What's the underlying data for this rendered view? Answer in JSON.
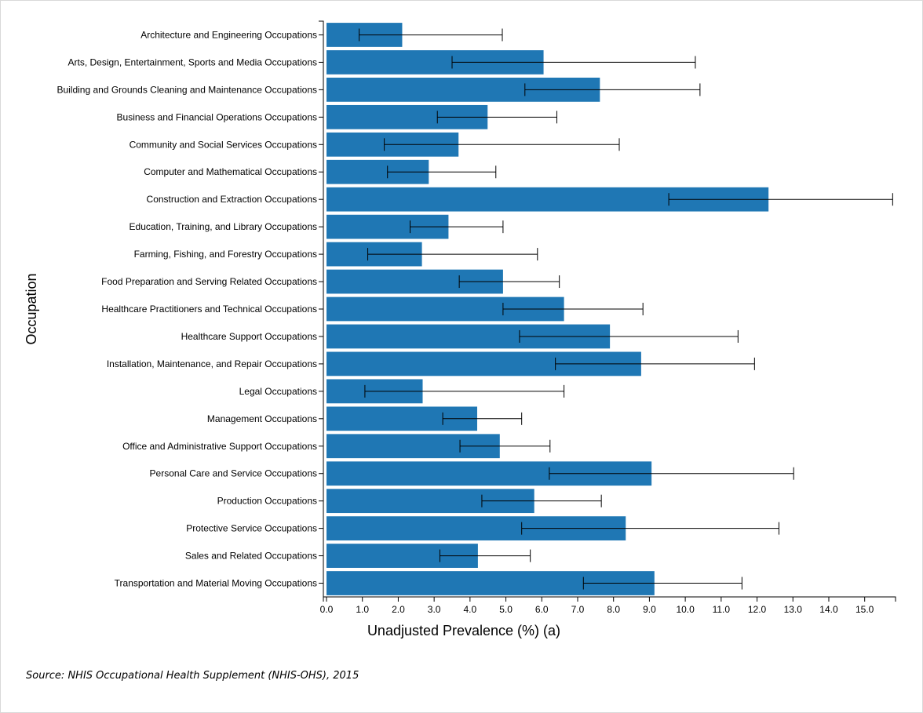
{
  "chart_data": {
    "type": "bar",
    "orientation": "horizontal",
    "xlabel": "Unadjusted Prevalence (%) (a)",
    "ylabel": "Occupation",
    "xlim": [
      0,
      15.86
    ],
    "xticks": [
      "0.0",
      "1.0",
      "2.0",
      "3.0",
      "4.0",
      "5.0",
      "6.0",
      "7.0",
      "8.0",
      "9.0",
      "10.0",
      "11.0",
      "12.0",
      "13.0",
      "14.0",
      "15.0"
    ],
    "grid": false,
    "bar_color": "#1f77b4",
    "error_bar_color": "#000000",
    "categories": [
      "Architecture and Engineering Occupations",
      "Arts, Design, Entertainment, Sports and Media Occupations",
      "Building and Grounds Cleaning and Maintenance Occupations",
      "Business and Financial Operations Occupations",
      "Community and Social Services Occupations",
      "Computer and Mathematical Occupations",
      "Construction and Extraction Occupations",
      "Education, Training, and Library Occupations",
      "Farming, Fishing, and Forestry Occupations",
      "Food Preparation and Serving Related Occupations",
      "Healthcare Practitioners and Technical Occupations",
      "Healthcare Support Occupations",
      "Installation, Maintenance, and Repair Occupations",
      "Legal Occupations",
      "Management Occupations",
      "Office and Administrative Support Occupations",
      "Personal Care and Service Occupations",
      "Production Occupations",
      "Protective Service Occupations",
      "Sales and Related Occupations",
      "Transportation and Material Moving Occupations"
    ],
    "values": [
      2.11,
      6.05,
      7.62,
      4.49,
      3.68,
      2.85,
      12.32,
      3.4,
      2.66,
      4.92,
      6.62,
      7.9,
      8.77,
      2.68,
      4.2,
      4.83,
      9.06,
      5.79,
      8.34,
      4.22,
      9.14
    ],
    "ci_low": [
      0.91,
      3.5,
      5.53,
      3.09,
      1.61,
      1.7,
      9.54,
      2.33,
      1.15,
      3.7,
      4.92,
      5.38,
      6.38,
      1.07,
      3.24,
      3.72,
      6.21,
      4.33,
      5.44,
      3.16,
      7.16
    ],
    "ci_high": [
      4.9,
      10.28,
      10.41,
      6.42,
      8.16,
      4.72,
      15.78,
      4.92,
      5.88,
      6.49,
      8.82,
      11.47,
      11.93,
      6.62,
      5.44,
      6.23,
      13.02,
      7.66,
      12.61,
      5.68,
      11.58
    ]
  },
  "source": "Source: NHIS Occupational Health Supplement (NHIS-OHS), 2015"
}
